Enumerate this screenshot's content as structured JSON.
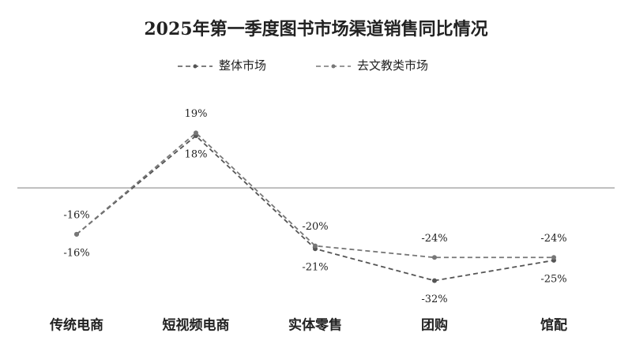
{
  "chart_data": {
    "type": "line",
    "title": "2025年第一季度图书市场渠道销售同比情况",
    "categories": [
      "传统电商",
      "短视频电商",
      "实体零售",
      "团购",
      "馆配"
    ],
    "series": [
      {
        "name": "整体市场",
        "color": "#555555",
        "values": [
          -16,
          18,
          -21,
          -32,
          -25
        ],
        "value_labels": [
          "-16%",
          "18%",
          "-21%",
          "-32%",
          "-25%"
        ]
      },
      {
        "name": "去文教类市场",
        "color": "#777777",
        "values": [
          -16,
          19,
          -20,
          -24,
          -24
        ],
        "value_labels": [
          "-16%",
          "19%",
          "-20%",
          "-24%",
          "-24%"
        ]
      }
    ],
    "ylim": [
      -40,
      30
    ],
    "reference_line": 0,
    "legend": "top"
  }
}
